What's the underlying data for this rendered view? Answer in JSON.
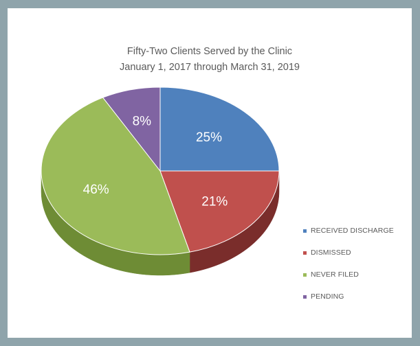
{
  "chart_data": {
    "type": "pie",
    "title": "Fifty-Two Clients Served by the Clinic",
    "subtitle": "January 1, 2017 through March 31, 2019",
    "slices": [
      {
        "label": "RECEIVED DISCHARGE",
        "value": 25,
        "display": "25%",
        "color": "#4f81bd",
        "side": "#385d8a"
      },
      {
        "label": "DISMISSED",
        "value": 21,
        "display": "21%",
        "color": "#c0504d",
        "side": "#7a2d2b"
      },
      {
        "label": "NEVER FILED",
        "value": 46,
        "display": "46%",
        "color": "#9bbb59",
        "side": "#6e8c35"
      },
      {
        "label": "PENDING",
        "value": 8,
        "display": "8%",
        "color": "#8064a2",
        "side": "#5c4479"
      }
    ],
    "legend_position": "right",
    "3d": true
  }
}
